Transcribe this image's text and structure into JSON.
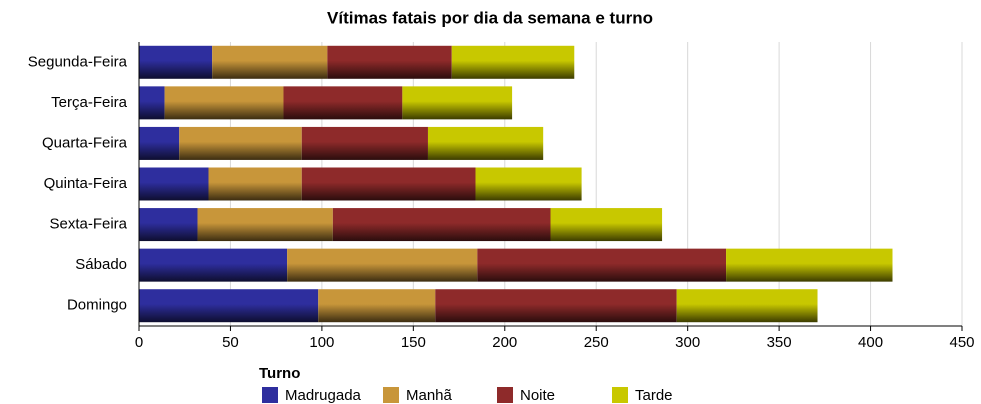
{
  "chart_data": {
    "type": "stacked-bar-horizontal",
    "title": "Vítimas fatais por dia da semana e turno",
    "categories": [
      "Segunda-Feira",
      "Terça-Feira",
      "Quarta-Feira",
      "Quinta-Feira",
      "Sexta-Feira",
      "Sábado",
      "Domingo"
    ],
    "series": [
      {
        "name": "Madrugada",
        "color": "#2e2e9e",
        "values": [
          40,
          14,
          22,
          38,
          32,
          81,
          98
        ]
      },
      {
        "name": "Manhã",
        "color": "#c8963a",
        "values": [
          63,
          65,
          67,
          51,
          74,
          104,
          64
        ]
      },
      {
        "name": "Noite",
        "color": "#8e2a2a",
        "values": [
          68,
          65,
          69,
          95,
          119,
          136,
          132
        ]
      },
      {
        "name": "Tarde",
        "color": "#c8c800",
        "values": [
          67,
          60,
          63,
          58,
          61,
          91,
          77
        ]
      }
    ],
    "xlim": [
      0,
      450
    ],
    "xticks": [
      0,
      50,
      100,
      150,
      200,
      250,
      300,
      350,
      400,
      450
    ],
    "grid": true,
    "legend_title": "Turno",
    "legend": "bottom"
  }
}
